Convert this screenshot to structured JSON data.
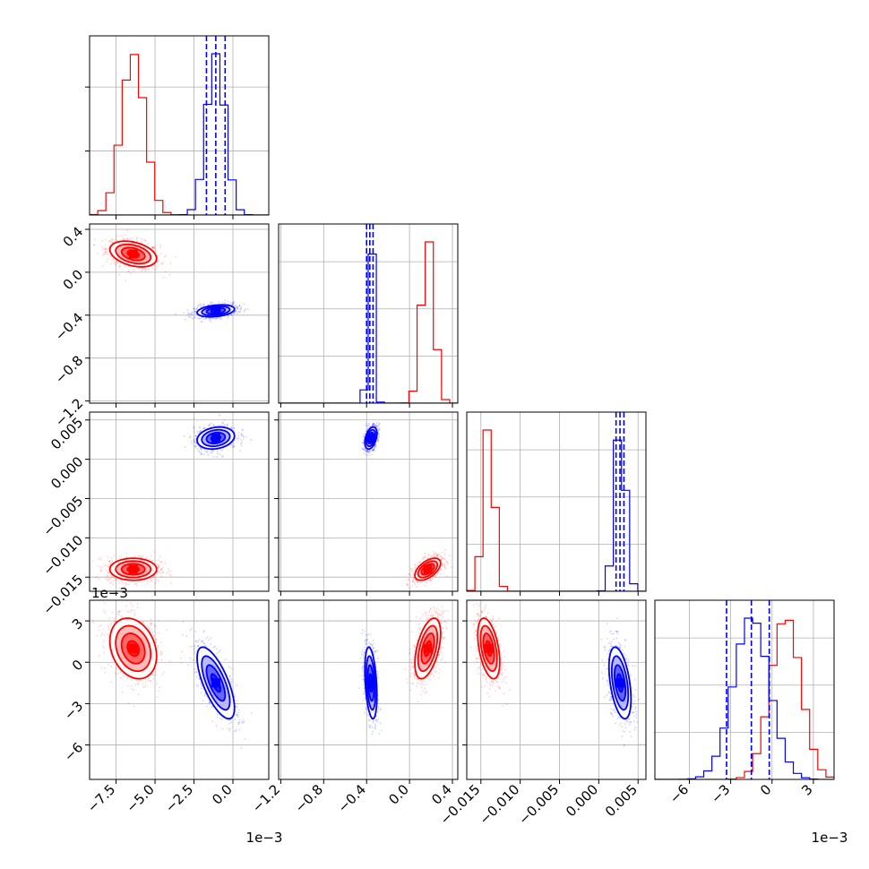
{
  "chart_data": {
    "type": "corner",
    "title": "",
    "grid": true,
    "colors": {
      "series_a": "#ff0000",
      "series_b": "#0000ff",
      "grid": "#b0b0b0",
      "frame": "#000000"
    },
    "series": [
      {
        "color": "#ff0000",
        "centers": [
          -0.0064,
          0.17,
          -0.014,
          0.001
        ],
        "stds": [
          0.00075,
          0.06,
          0.0007,
          0.0011
        ],
        "correlations": [
          [
            0,
            1,
            -0.35
          ],
          [
            0,
            2,
            0.0
          ],
          [
            0,
            3,
            -0.25
          ],
          [
            1,
            2,
            0.55
          ],
          [
            1,
            3,
            0.5
          ],
          [
            2,
            3,
            -0.45
          ]
        ],
        "quantiles": null
      },
      {
        "color": "#0000ff",
        "centers": [
          -0.0011,
          -0.36,
          0.0027,
          -0.0015
        ],
        "stds": [
          0.0006,
          0.028,
          0.0007,
          0.0013
        ],
        "correlations": [
          [
            0,
            1,
            0.3
          ],
          [
            0,
            2,
            0.2
          ],
          [
            0,
            3,
            -0.7
          ],
          [
            1,
            2,
            0.4
          ],
          [
            1,
            3,
            -0.35
          ],
          [
            2,
            3,
            -0.45
          ]
        ],
        "quantiles": [
          [
            -0.0017,
            -0.0011,
            -0.0005
          ],
          [
            -0.4,
            -0.37,
            -0.34
          ],
          [
            0.0022,
            0.0027,
            0.0032
          ],
          [
            -0.0033,
            -0.0015,
            -0.0002
          ]
        ]
      }
    ],
    "params": [
      {
        "range": [
          -0.0092,
          0.0023
        ],
        "ticks": [
          -0.0075,
          -0.005,
          -0.0025,
          0.0
        ],
        "tick_labels": [
          "−7.5",
          "−5.0",
          "−2.5",
          "0.0"
        ],
        "offset": "1e−3"
      },
      {
        "range": [
          -1.22,
          0.45
        ],
        "ticks": [
          -1.2,
          -0.8,
          -0.4,
          0.0,
          0.4
        ],
        "tick_labels": [
          "−1.2",
          "−0.8",
          "−0.4",
          "0.0",
          "0.4"
        ],
        "offset": ""
      },
      {
        "range": [
          -0.0168,
          0.006
        ],
        "ticks": [
          -0.015,
          -0.01,
          -0.005,
          0.0,
          0.005
        ],
        "tick_labels": [
          "−0.015",
          "−0.010",
          "−0.005",
          "0.000",
          "0.005"
        ],
        "offset": ""
      },
      {
        "range": [
          -0.0085,
          0.0045
        ],
        "ticks": [
          -0.006,
          -0.003,
          0.0,
          0.003
        ],
        "tick_labels": [
          "−6",
          "−3",
          "0",
          "3"
        ],
        "offset": "1e−3"
      }
    ],
    "row0_hist_yticks": 2
  }
}
